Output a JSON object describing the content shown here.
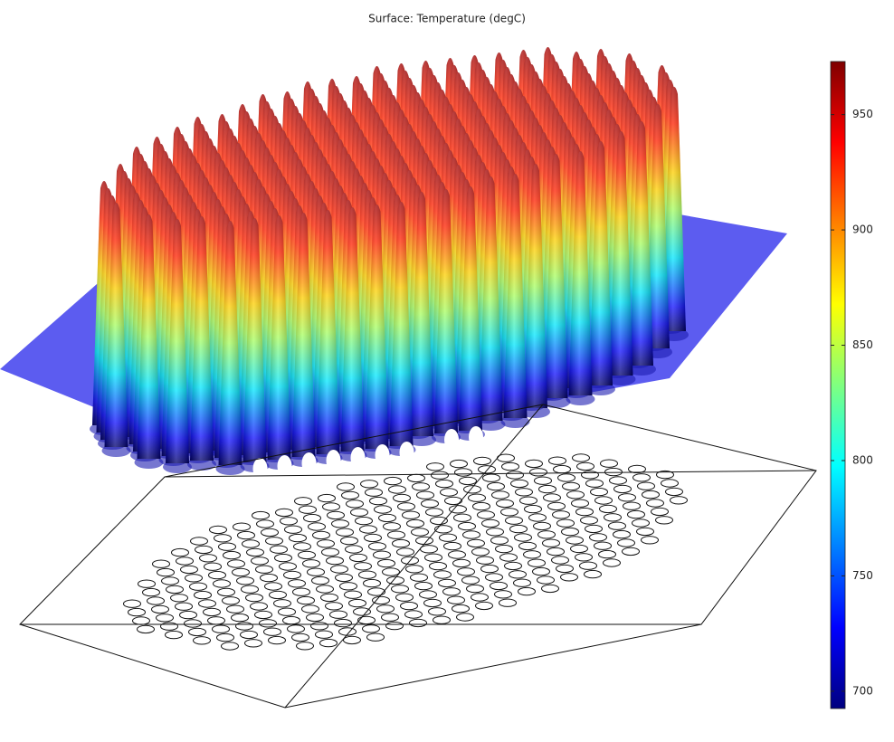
{
  "chart_data": {
    "type": "surface",
    "title": "Surface: Temperature (degC)",
    "colormap": "jet",
    "clim": [
      692.5,
      973
    ],
    "cticks": [
      700,
      750,
      800,
      850,
      900,
      950
    ]
  }
}
